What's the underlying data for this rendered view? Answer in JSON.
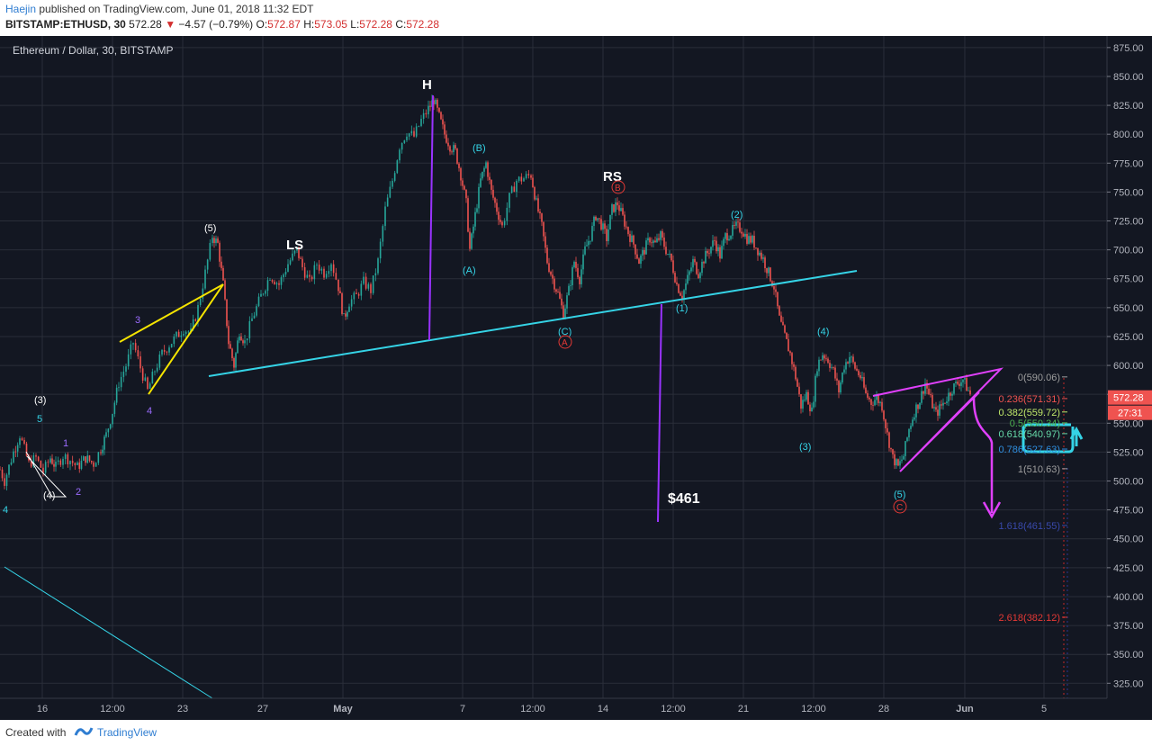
{
  "header": {
    "author": "Haejin",
    "published": "published on TradingView.com, June 01, 2018 11:32 EDT",
    "symbol": "BITSTAMP:ETHUSD, 30",
    "last": "572.28",
    "change": "−4.57 (−0.79%)",
    "o_label": "O:",
    "o": "572.87",
    "h_label": "H:",
    "h": "573.05",
    "l_label": "L:",
    "l": "572.28",
    "c_label": "C:",
    "c": "572.28"
  },
  "footer": {
    "created_with": "Created with",
    "brand": "TradingView"
  },
  "colors": {
    "background": "#131722",
    "grid": "#2a2e39",
    "up": "#26a69a",
    "down": "#ef5350",
    "cyan": "#35d3e6",
    "purple": "#9933ff",
    "yellow": "#f5e400",
    "magenta": "#e040fb",
    "price_tag": "#ef5350"
  },
  "chart_data": {
    "type": "candlestick",
    "title": "Ethereum / Dollar, 30, BITSTAMP",
    "ylim": [
      312,
      885
    ],
    "y_ticks": [
      "875.00",
      "850.00",
      "825.00",
      "800.00",
      "775.00",
      "750.00",
      "725.00",
      "700.00",
      "675.00",
      "650.00",
      "625.00",
      "600.00",
      "575.00",
      "550.00",
      "525.00",
      "500.00",
      "475.00",
      "450.00",
      "425.00",
      "400.00",
      "375.00",
      "350.00",
      "325.00"
    ],
    "x_ticks": [
      "16",
      "12:00",
      "23",
      "27",
      "May",
      "7",
      "12:00",
      "14",
      "12:00",
      "21",
      "12:00",
      "28",
      "Jun",
      "5"
    ],
    "price_path": [
      [
        0,
        510
      ],
      [
        5,
        500
      ],
      [
        15,
        525
      ],
      [
        22,
        540
      ],
      [
        32,
        515
      ],
      [
        40,
        520
      ],
      [
        48,
        508
      ],
      [
        56,
        520
      ],
      [
        62,
        512
      ],
      [
        70,
        522
      ],
      [
        78,
        518
      ],
      [
        86,
        512
      ],
      [
        95,
        520
      ],
      [
        104,
        515
      ],
      [
        112,
        528
      ],
      [
        118,
        540
      ],
      [
        125,
        560
      ],
      [
        132,
        585
      ],
      [
        140,
        600
      ],
      [
        148,
        620
      ],
      [
        156,
        598
      ],
      [
        164,
        578
      ],
      [
        172,
        596
      ],
      [
        180,
        610
      ],
      [
        188,
        618
      ],
      [
        196,
        625
      ],
      [
        204,
        632
      ],
      [
        212,
        628
      ],
      [
        220,
        650
      ],
      [
        228,
        680
      ],
      [
        236,
        712
      ],
      [
        242,
        705
      ],
      [
        248,
        670
      ],
      [
        254,
        620
      ],
      [
        260,
        600
      ],
      [
        266,
        630
      ],
      [
        272,
        620
      ],
      [
        280,
        640
      ],
      [
        290,
        660
      ],
      [
        300,
        678
      ],
      [
        310,
        670
      ],
      [
        320,
        688
      ],
      [
        330,
        700
      ],
      [
        336,
        685
      ],
      [
        344,
        672
      ],
      [
        352,
        688
      ],
      [
        360,
        680
      ],
      [
        368,
        690
      ],
      [
        376,
        668
      ],
      [
        382,
        640
      ],
      [
        388,
        655
      ],
      [
        396,
        660
      ],
      [
        404,
        672
      ],
      [
        412,
        665
      ],
      [
        420,
        690
      ],
      [
        428,
        735
      ],
      [
        436,
        760
      ],
      [
        444,
        790
      ],
      [
        452,
        802
      ],
      [
        460,
        798
      ],
      [
        468,
        812
      ],
      [
        476,
        822
      ],
      [
        482,
        830
      ],
      [
        488,
        815
      ],
      [
        494,
        800
      ],
      [
        500,
        790
      ],
      [
        506,
        785
      ],
      [
        512,
        765
      ],
      [
        518,
        740
      ],
      [
        522,
        700
      ],
      [
        528,
        730
      ],
      [
        534,
        760
      ],
      [
        540,
        775
      ],
      [
        546,
        750
      ],
      [
        552,
        735
      ],
      [
        558,
        720
      ],
      [
        566,
        745
      ],
      [
        574,
        760
      ],
      [
        582,
        762
      ],
      [
        590,
        765
      ],
      [
        596,
        740
      ],
      [
        602,
        720
      ],
      [
        608,
        690
      ],
      [
        614,
        675
      ],
      [
        620,
        662
      ],
      [
        626,
        645
      ],
      [
        632,
        665
      ],
      [
        638,
        690
      ],
      [
        644,
        675
      ],
      [
        650,
        700
      ],
      [
        656,
        712
      ],
      [
        662,
        730
      ],
      [
        668,
        722
      ],
      [
        674,
        710
      ],
      [
        680,
        735
      ],
      [
        686,
        740
      ],
      [
        692,
        728
      ],
      [
        698,
        715
      ],
      [
        704,
        705
      ],
      [
        710,
        690
      ],
      [
        716,
        700
      ],
      [
        722,
        710
      ],
      [
        728,
        705
      ],
      [
        734,
        712
      ],
      [
        740,
        700
      ],
      [
        746,
        690
      ],
      [
        752,
        670
      ],
      [
        758,
        660
      ],
      [
        764,
        675
      ],
      [
        770,
        690
      ],
      [
        776,
        680
      ],
      [
        782,
        692
      ],
      [
        788,
        700
      ],
      [
        794,
        708
      ],
      [
        800,
        695
      ],
      [
        806,
        712
      ],
      [
        812,
        715
      ],
      [
        818,
        720
      ],
      [
        824,
        718
      ],
      [
        830,
        710
      ],
      [
        836,
        708
      ],
      [
        842,
        700
      ],
      [
        848,
        692
      ],
      [
        854,
        680
      ],
      [
        860,
        668
      ],
      [
        866,
        640
      ],
      [
        872,
        625
      ],
      [
        878,
        610
      ],
      [
        884,
        590
      ],
      [
        890,
        565
      ],
      [
        896,
        575
      ],
      [
        902,
        560
      ],
      [
        908,
        600
      ],
      [
        914,
        610
      ],
      [
        920,
        605
      ],
      [
        926,
        595
      ],
      [
        932,
        578
      ],
      [
        938,
        600
      ],
      [
        944,
        608
      ],
      [
        950,
        598
      ],
      [
        956,
        590
      ],
      [
        962,
        575
      ],
      [
        968,
        568
      ],
      [
        974,
        572
      ],
      [
        980,
        565
      ],
      [
        986,
        540
      ],
      [
        992,
        520
      ],
      [
        998,
        512
      ],
      [
        1004,
        522
      ],
      [
        1010,
        545
      ],
      [
        1016,
        560
      ],
      [
        1022,
        570
      ],
      [
        1028,
        585
      ],
      [
        1034,
        570
      ],
      [
        1040,
        558
      ],
      [
        1046,
        565
      ],
      [
        1052,
        572
      ],
      [
        1058,
        580
      ],
      [
        1064,
        585
      ],
      [
        1070,
        588
      ],
      [
        1076,
        578
      ],
      [
        1080,
        572
      ]
    ],
    "price_tag": {
      "value": "572.28",
      "countdown": "27:31",
      "y_value": 572.28
    },
    "fib_levels": [
      {
        "ratio": "0",
        "value": "590.06",
        "label": "0(590.06)",
        "color": "#9e9e9e"
      },
      {
        "ratio": "0.236",
        "value": "571.31",
        "label": "0.236(571.31)",
        "color": "#ef5350"
      },
      {
        "ratio": "0.382",
        "value": "559.72",
        "label": "0.382(559.72)",
        "color": "#c0e86a"
      },
      {
        "ratio": "0.5",
        "value": "550.34",
        "label": "0.5(550.34)",
        "color": "#4caf50"
      },
      {
        "ratio": "0.618",
        "value": "540.97",
        "label": "0.618(540.97)",
        "color": "#66d9a8"
      },
      {
        "ratio": "0.786",
        "value": "527.63",
        "label": "0.786(527.63)",
        "color": "#2f8fe0"
      },
      {
        "ratio": "1",
        "value": "510.63",
        "label": "1(510.63)",
        "color": "#9e9e9e"
      },
      {
        "ratio": "1.618",
        "value": "461.55",
        "label": "1.618(461.55)",
        "color": "#3949ab"
      },
      {
        "ratio": "2.618",
        "value": "382.12",
        "label": "2.618(382.12)",
        "color": "#e53935"
      }
    ],
    "annotations": {
      "H": "H",
      "LS": "LS",
      "RS": "RS",
      "target": "$461",
      "wave_5_top": "(5)",
      "wave_3_left": "(3)",
      "wave_5_left": "5",
      "wave_4_left": "(4)",
      "wave_1_small": "1",
      "wave_2_small": "2",
      "wave_3_purple": "3",
      "wave_4_purple": "4",
      "left_edge_4": "4",
      "wave_B_cyan": "(B)",
      "wave_A_cyan": "(A)",
      "wave_C_cyan": "(C)",
      "circle_A": "A",
      "circle_B": "B",
      "wave_1_cyan": "(1)",
      "wave_2_cyan": "(2)",
      "wave_3_cyan": "(3)",
      "wave_4_cyan": "(4)",
      "wave_5_cyan": "(5)",
      "circle_C": "C"
    }
  }
}
